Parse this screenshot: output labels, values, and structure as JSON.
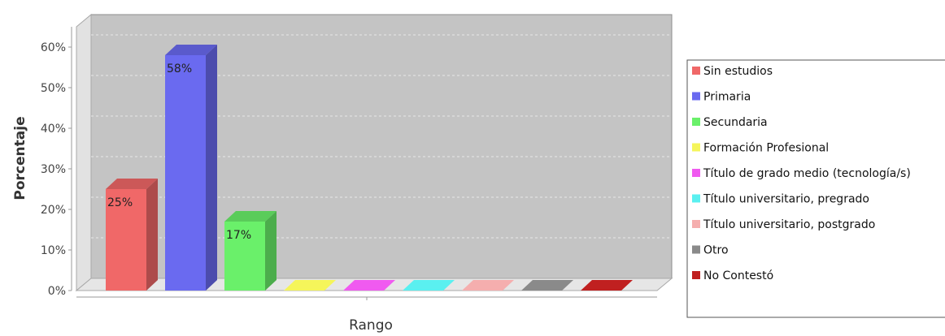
{
  "chart_data": {
    "type": "bar",
    "xlabel": "Rango",
    "ylabel": "Porcentaje",
    "ylim": [
      0,
      65
    ],
    "yticks": [
      "0%",
      "10%",
      "20%",
      "30%",
      "40%",
      "50%",
      "60%"
    ],
    "ytick_values": [
      0,
      10,
      20,
      30,
      40,
      50,
      60
    ],
    "grid": true,
    "legend_position": "right",
    "series": [
      {
        "name": "Sin estudios",
        "value": 25,
        "label": "25%",
        "color": "#f06868"
      },
      {
        "name": "Primaria",
        "value": 58,
        "label": "58%",
        "color": "#6a6af0"
      },
      {
        "name": "Secundaria",
        "value": 17,
        "label": "17%",
        "color": "#6af06a"
      },
      {
        "name": "Formación Profesional",
        "value": 0,
        "label": "",
        "color": "#f5f55a"
      },
      {
        "name": "Título de grado medio (tecnología/s)",
        "value": 0,
        "label": "",
        "color": "#f05af0"
      },
      {
        "name": "Título universitario, pregrado",
        "value": 0,
        "label": "",
        "color": "#5af0f0"
      },
      {
        "name": "Título universitario, postgrado",
        "value": 0,
        "label": "",
        "color": "#f5aeae"
      },
      {
        "name": "Otro",
        "value": 0,
        "label": "",
        "color": "#8a8a8a"
      },
      {
        "name": "No Contestó",
        "value": 0,
        "label": "",
        "color": "#c02020"
      }
    ]
  }
}
